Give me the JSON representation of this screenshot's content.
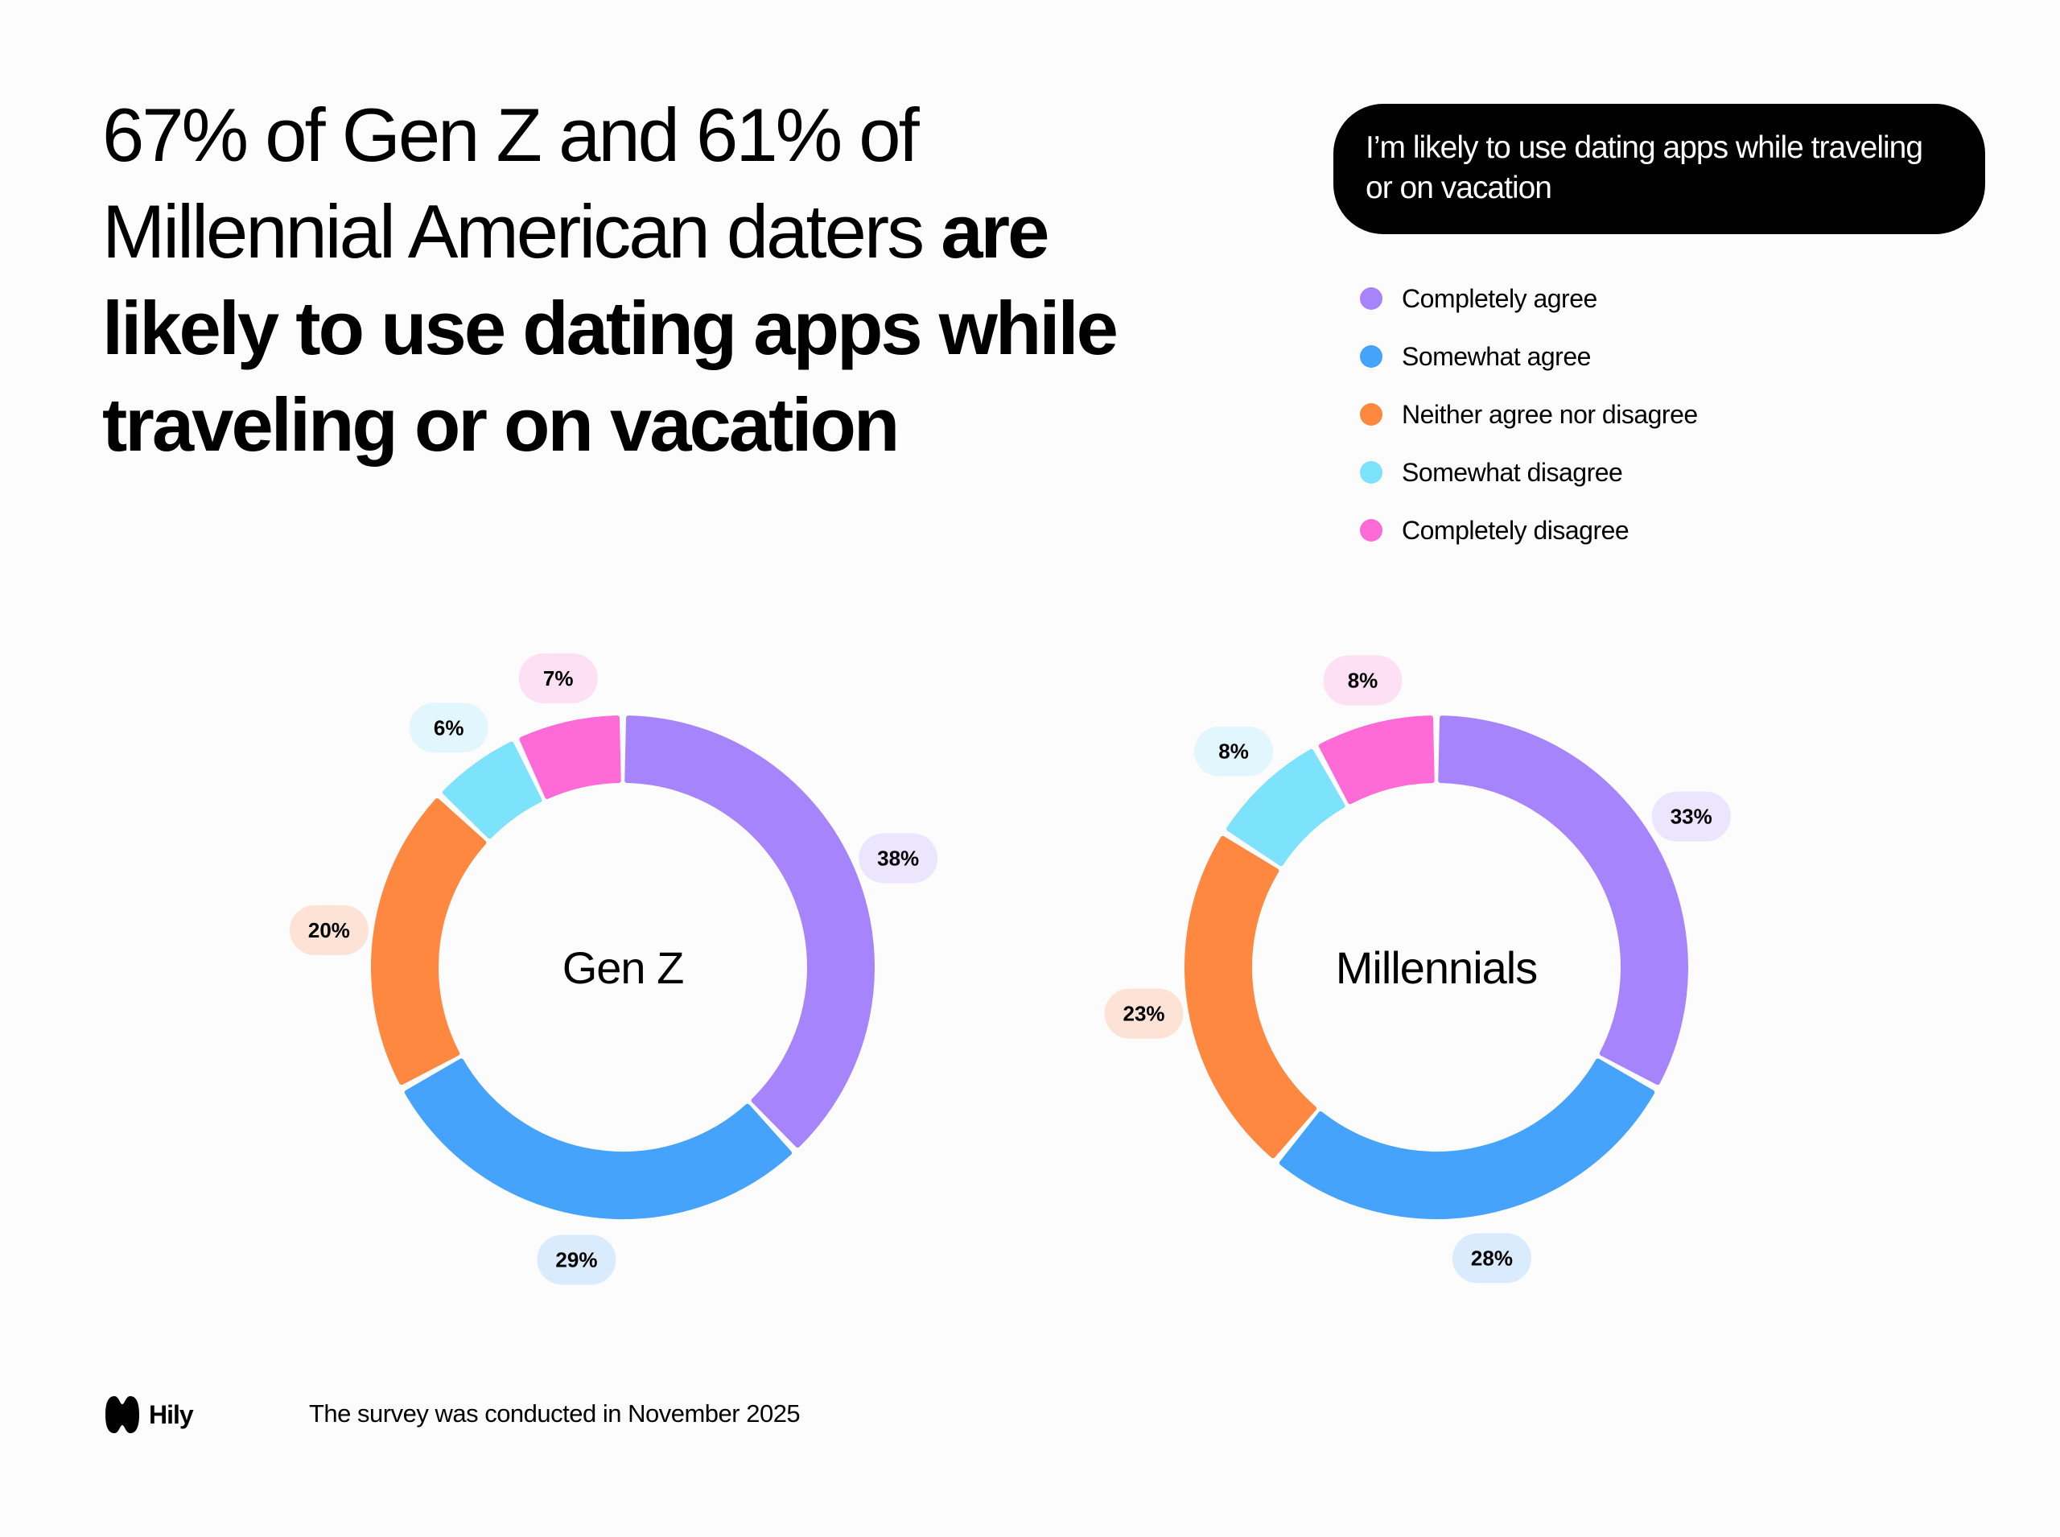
{
  "title": {
    "lines": [
      {
        "regular": "67% of Gen Z and 61% of",
        "bold": ""
      },
      {
        "regular": "Millennial American daters ",
        "bold": "are"
      },
      {
        "regular": "",
        "bold": "likely to use dating apps while"
      },
      {
        "regular": "",
        "bold": "traveling or on vacation"
      }
    ]
  },
  "question": "I’m likely to use dating apps while traveling or on vacation",
  "footer": {
    "brand": "Hily",
    "note": "The survey was conducted in November 2025"
  },
  "chart_data": [
    {
      "type": "pie",
      "variant": "donut",
      "center_label": "Gen Z",
      "categories": [
        "Completely agree",
        "Somewhat agree",
        "Neither agree nor disagree",
        "Somewhat disagree",
        "Completely disagree"
      ],
      "values": [
        38,
        29,
        20,
        6,
        7
      ],
      "labels": [
        "38%",
        "29%",
        "20%",
        "6%",
        "7%"
      ],
      "colors": [
        "#a685fc",
        "#45a3fc",
        "#fe8840",
        "#7de2fc",
        "#fe6bd6"
      ],
      "label_bg": [
        "#ece5fe",
        "#dbebfe",
        "#fde3d6",
        "#e2f6fd",
        "#fde0f3"
      ],
      "legend": "top-right"
    },
    {
      "type": "pie",
      "variant": "donut",
      "center_label": "Millennials",
      "categories": [
        "Completely agree",
        "Somewhat agree",
        "Neither agree nor disagree",
        "Somewhat disagree",
        "Completely disagree"
      ],
      "values": [
        33,
        28,
        23,
        8,
        8
      ],
      "labels": [
        "33%",
        "28%",
        "23%",
        "8%",
        "8%"
      ],
      "colors": [
        "#a685fc",
        "#45a3fc",
        "#fe8840",
        "#7de2fc",
        "#fe6bd6"
      ],
      "label_bg": [
        "#ece5fe",
        "#dbebfe",
        "#fde3d6",
        "#e2f6fd",
        "#fde0f3"
      ],
      "legend": "top-right"
    }
  ],
  "legend": [
    {
      "label": "Completely agree",
      "color": "#a685fc"
    },
    {
      "label": "Somewhat agree",
      "color": "#45a3fc"
    },
    {
      "label": "Neither agree nor disagree",
      "color": "#fe8840"
    },
    {
      "label": "Somewhat disagree",
      "color": "#7de2fc"
    },
    {
      "label": "Completely disagree",
      "color": "#fe6bd6"
    }
  ]
}
